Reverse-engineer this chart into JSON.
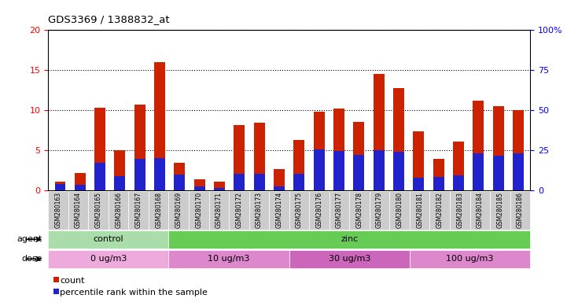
{
  "title": "GDS3369 / 1388832_at",
  "samples": [
    "GSM280163",
    "GSM280164",
    "GSM280165",
    "GSM280166",
    "GSM280167",
    "GSM280168",
    "GSM280169",
    "GSM280170",
    "GSM280171",
    "GSM280172",
    "GSM280173",
    "GSM280174",
    "GSM280175",
    "GSM280176",
    "GSM280177",
    "GSM280178",
    "GSM280179",
    "GSM280180",
    "GSM280181",
    "GSM280182",
    "GSM280183",
    "GSM280184",
    "GSM280185",
    "GSM280186"
  ],
  "count_values": [
    1.1,
    2.2,
    10.3,
    5.0,
    10.7,
    16.0,
    3.4,
    1.4,
    1.1,
    8.1,
    8.4,
    2.6,
    6.3,
    9.8,
    10.2,
    8.5,
    14.5,
    12.8,
    7.4,
    3.9,
    6.1,
    11.2,
    10.5,
    10.0
  ],
  "percentile_values": [
    4.0,
    3.5,
    17.0,
    9.0,
    19.5,
    20.0,
    10.0,
    2.5,
    1.5,
    10.5,
    10.5,
    2.5,
    10.5,
    25.5,
    24.5,
    22.0,
    25.0,
    24.0,
    8.0,
    8.5,
    9.5,
    23.0,
    21.5,
    23.0
  ],
  "ylim_left": [
    0,
    20
  ],
  "ylim_right": [
    0,
    100
  ],
  "yticks_left": [
    0,
    5,
    10,
    15,
    20
  ],
  "yticks_right": [
    0,
    25,
    50,
    75,
    100
  ],
  "bar_color": "#cc2200",
  "percentile_color": "#2222cc",
  "agent_groups": [
    {
      "label": "control",
      "start": 0,
      "end": 6,
      "color": "#aaddaa"
    },
    {
      "label": "zinc",
      "start": 6,
      "end": 24,
      "color": "#66cc55"
    }
  ],
  "dose_groups": [
    {
      "label": "0 ug/m3",
      "start": 0,
      "end": 6,
      "color": "#eeaadd"
    },
    {
      "label": "10 ug/m3",
      "start": 6,
      "end": 12,
      "color": "#dd88cc"
    },
    {
      "label": "30 ug/m3",
      "start": 12,
      "end": 18,
      "color": "#cc66bb"
    },
    {
      "label": "100 ug/m3",
      "start": 18,
      "end": 24,
      "color": "#dd88cc"
    }
  ],
  "bar_width": 0.55,
  "legend_count_label": "count",
  "legend_percentile_label": "percentile rank within the sample",
  "tick_bg_color": "#cccccc"
}
